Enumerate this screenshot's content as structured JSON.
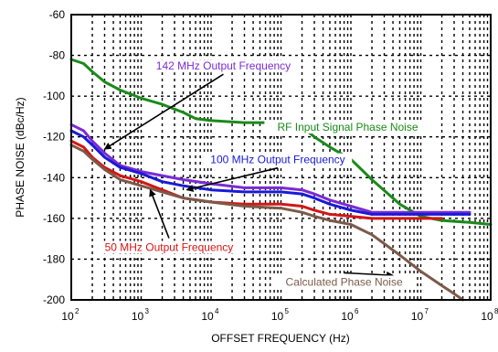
{
  "chart_data": {
    "type": "line",
    "xlabel": "OFFSET FREQUENCY (Hz)",
    "ylabel": "PHASE NOISE (dBc/Hz)",
    "x_scale": "log",
    "xlim": [
      100,
      100000000
    ],
    "ylim": [
      -200,
      -60
    ],
    "grid": true,
    "y_ticks": [
      -60,
      -80,
      -100,
      -120,
      -140,
      -160,
      -180,
      -200
    ],
    "x_ticks": [
      {
        "value": 100,
        "base": "10",
        "exp": "2"
      },
      {
        "value": 1000,
        "base": "10",
        "exp": "3"
      },
      {
        "value": 10000,
        "base": "10",
        "exp": "4"
      },
      {
        "value": 100000,
        "base": "10",
        "exp": "5"
      },
      {
        "value": 1000000,
        "base": "10",
        "exp": "6"
      },
      {
        "value": 10000000,
        "base": "10",
        "exp": "7"
      },
      {
        "value": 100000000,
        "base": "10",
        "exp": "8"
      }
    ],
    "series": [
      {
        "name": "RF Input Signal Phase Noise",
        "color": "#1a8a1a",
        "points": [
          [
            100,
            -82
          ],
          [
            150,
            -84
          ],
          [
            200,
            -88
          ],
          [
            300,
            -93
          ],
          [
            500,
            -97
          ],
          [
            1000,
            -101
          ],
          [
            2000,
            -104
          ],
          [
            4000,
            -108
          ],
          [
            6000,
            -111
          ],
          [
            10000,
            -112
          ],
          [
            30000,
            -113
          ],
          [
            100000,
            -113
          ],
          [
            200000,
            -115
          ],
          [
            300000,
            -120
          ],
          [
            500000,
            -125
          ],
          [
            1000000,
            -131
          ],
          [
            2000000,
            -141
          ],
          [
            5000000,
            -153
          ],
          [
            10000000,
            -159
          ],
          [
            20000000,
            -161
          ],
          [
            50000000,
            -162
          ],
          [
            100000000,
            -163
          ]
        ]
      },
      {
        "name": "142 MHz Output Frequency",
        "color": "#7a2bd6",
        "points": [
          [
            100,
            -114
          ],
          [
            150,
            -117
          ],
          [
            200,
            -122
          ],
          [
            300,
            -128
          ],
          [
            500,
            -134
          ],
          [
            1000,
            -137
          ],
          [
            2000,
            -139
          ],
          [
            4000,
            -141
          ],
          [
            10000,
            -143
          ],
          [
            30000,
            -145
          ],
          [
            100000,
            -145
          ],
          [
            200000,
            -146
          ],
          [
            300000,
            -148
          ],
          [
            500000,
            -151
          ],
          [
            1000000,
            -154
          ],
          [
            2000000,
            -157
          ],
          [
            5000000,
            -157
          ],
          [
            10000000,
            -157
          ],
          [
            20000000,
            -157
          ],
          [
            50000000,
            -157
          ]
        ]
      },
      {
        "name": "100 MHz Output Frequency",
        "color": "#1a1ad6",
        "points": [
          [
            100,
            -117
          ],
          [
            150,
            -120
          ],
          [
            200,
            -124
          ],
          [
            300,
            -130
          ],
          [
            500,
            -135
          ],
          [
            1000,
            -138
          ],
          [
            2000,
            -142
          ],
          [
            4000,
            -144
          ],
          [
            10000,
            -146
          ],
          [
            30000,
            -147
          ],
          [
            100000,
            -147
          ],
          [
            200000,
            -148
          ],
          [
            300000,
            -150
          ],
          [
            500000,
            -153
          ],
          [
            1000000,
            -156
          ],
          [
            2000000,
            -158
          ],
          [
            5000000,
            -158
          ],
          [
            10000000,
            -158
          ],
          [
            20000000,
            -158
          ],
          [
            50000000,
            -158
          ]
        ]
      },
      {
        "name": "50 MHz Output Frequency",
        "color": "#d41515",
        "points": [
          [
            100,
            -122
          ],
          [
            150,
            -125
          ],
          [
            200,
            -130
          ],
          [
            300,
            -135
          ],
          [
            500,
            -139
          ],
          [
            1000,
            -142
          ],
          [
            2000,
            -146
          ],
          [
            4000,
            -150
          ],
          [
            10000,
            -152
          ],
          [
            30000,
            -153
          ],
          [
            100000,
            -153
          ],
          [
            200000,
            -154
          ],
          [
            300000,
            -156
          ],
          [
            500000,
            -158
          ],
          [
            1000000,
            -159
          ],
          [
            2000000,
            -160
          ],
          [
            5000000,
            -160
          ],
          [
            10000000,
            -160
          ],
          [
            20000000,
            -160
          ]
        ]
      },
      {
        "name": "Calculated Phase Noise",
        "color": "#7b5a4a",
        "points": [
          [
            100,
            -124
          ],
          [
            150,
            -127
          ],
          [
            200,
            -131
          ],
          [
            300,
            -136
          ],
          [
            500,
            -141
          ],
          [
            1000,
            -144
          ],
          [
            2000,
            -147
          ],
          [
            4000,
            -150
          ],
          [
            10000,
            -152
          ],
          [
            30000,
            -154
          ],
          [
            100000,
            -155
          ],
          [
            200000,
            -157
          ],
          [
            300000,
            -159
          ],
          [
            500000,
            -161
          ],
          [
            1000000,
            -163
          ],
          [
            2000000,
            -168
          ],
          [
            5000000,
            -178
          ],
          [
            10000000,
            -186
          ],
          [
            20000000,
            -193
          ],
          [
            30000000,
            -197
          ],
          [
            40000000,
            -200
          ]
        ]
      }
    ],
    "annotations": [
      {
        "text": "142 MHz Output Frequency",
        "color": "#7a2bd6",
        "x": 15000,
        "y": -87,
        "anchor": "middle",
        "arrow_to": [
          300,
          -126
        ]
      },
      {
        "text": "RF Input Signal Phase Noise",
        "color": "#1a8a1a",
        "x": 900000,
        "y": -117,
        "anchor": "middle"
      },
      {
        "text": "100 MHz Output Frequency",
        "color": "#1a1ad6",
        "x": 90000,
        "y": -133,
        "anchor": "middle",
        "arrow_to": [
          4500,
          -146
        ]
      },
      {
        "text": "50 MHz Output Frequency",
        "color": "#d41515",
        "x": 2500,
        "y": -176,
        "anchor": "middle",
        "arrow_to": [
          1350,
          -146
        ]
      },
      {
        "text": "Calculated  Phase Noise",
        "color": "#7b5a4a",
        "x": 800000,
        "y": -193,
        "anchor": "middle",
        "arrow_to": [
          4000000,
          -188
        ]
      }
    ]
  }
}
